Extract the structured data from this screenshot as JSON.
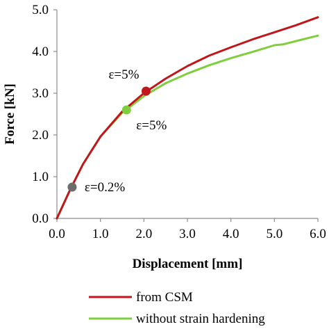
{
  "chart_data": {
    "type": "line",
    "xlabel": "Displacement [mm]",
    "ylabel": "Force [kN]",
    "xlim": [
      0,
      6
    ],
    "ylim": [
      0,
      5
    ],
    "xticks": [
      "0.0",
      "1.0",
      "2.0",
      "3.0",
      "4.0",
      "5.0",
      "6.0"
    ],
    "yticks": [
      "0.0",
      "1.0",
      "2.0",
      "3.0",
      "4.0",
      "5.0"
    ],
    "legend_position": "bottom",
    "grid": false,
    "series": [
      {
        "name": "from CSM",
        "color": "#c0161c",
        "x": [
          0,
          0.3,
          0.6,
          1.0,
          1.5,
          2.0,
          2.5,
          3.0,
          3.5,
          4.0,
          4.5,
          5.0,
          5.5,
          6.0
        ],
        "y": [
          0,
          0.68,
          1.3,
          1.96,
          2.56,
          3.0,
          3.35,
          3.65,
          3.9,
          4.1,
          4.29,
          4.46,
          4.63,
          4.82
        ]
      },
      {
        "name": "without strain hardening",
        "color": "#7fce3e",
        "x": [
          0,
          0.3,
          0.6,
          1.0,
          1.5,
          2.0,
          2.5,
          3.0,
          3.5,
          4.0,
          4.5,
          5.0,
          5.2,
          5.5,
          6.0
        ],
        "y": [
          0,
          0.68,
          1.3,
          1.96,
          2.53,
          2.93,
          3.24,
          3.47,
          3.67,
          3.84,
          3.99,
          4.15,
          4.17,
          4.25,
          4.38
        ]
      }
    ],
    "markers": [
      {
        "label": "ε=0.2%",
        "x": 0.35,
        "y": 0.75,
        "color": "#6d6d6d"
      },
      {
        "label": "ε=5%",
        "x": 1.6,
        "y": 2.6,
        "color": "#7fce3e"
      },
      {
        "label": "ε=5%",
        "x": 2.05,
        "y": 3.05,
        "color": "#c0161c"
      }
    ]
  }
}
